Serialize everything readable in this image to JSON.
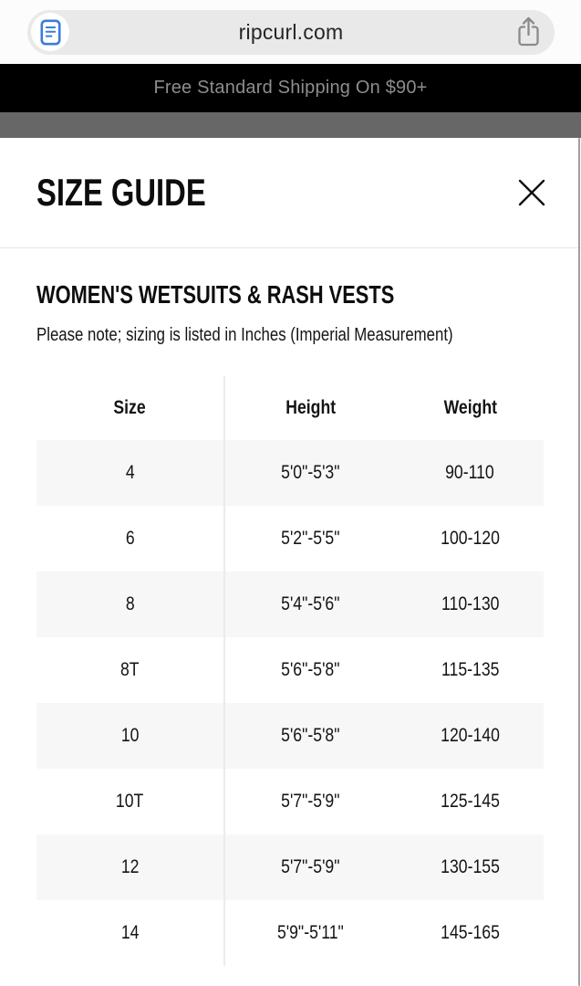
{
  "browser": {
    "url": "ripcurl.com"
  },
  "banner": {
    "text": "Free Standard Shipping On $90+",
    "bg_color": "#000000",
    "text_color": "#8d8d8d"
  },
  "modal": {
    "title": "SIZE GUIDE",
    "section_heading": "WOMEN'S WETSUITS & RASH VESTS",
    "note": "Please note; sizing is listed in Inches (Imperial Measurement)"
  },
  "size_table": {
    "columns": [
      "Size",
      "Height",
      "Weight"
    ],
    "rows": [
      {
        "size": "4",
        "height": "5'0\"-5'3\"",
        "weight": "90-110"
      },
      {
        "size": "6",
        "height": "5'2\"-5'5\"",
        "weight": "100-120"
      },
      {
        "size": "8",
        "height": "5'4\"-5'6\"",
        "weight": "110-130"
      },
      {
        "size": "8T",
        "height": "5'6\"-5'8\"",
        "weight": "115-135"
      },
      {
        "size": "10",
        "height": "5'6\"-5'8\"",
        "weight": "120-140"
      },
      {
        "size": "10T",
        "height": "5'7\"-5'9\"",
        "weight": "125-145"
      },
      {
        "size": "12",
        "height": "5'7\"-5'9\"",
        "weight": "130-155"
      },
      {
        "size": "14",
        "height": "5'9\"-5'11\"",
        "weight": "145-165"
      }
    ]
  },
  "colors": {
    "reader_icon_blue": "#3b7dd8",
    "share_icon_gray": "#8a8a8e",
    "pill_gray": "#e9e9ea",
    "dim_bar_gray": "#676767",
    "row_stripe": "#f7f7f8",
    "divider": "#ebebeb"
  },
  "icons": {
    "reader": "reader-document-icon",
    "share": "share-icon",
    "close": "close-icon"
  }
}
